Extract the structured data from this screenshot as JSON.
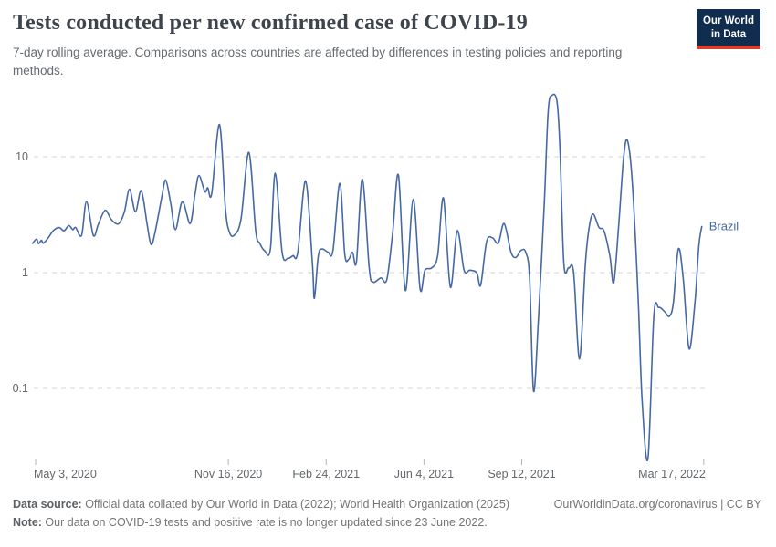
{
  "header": {
    "title": "Tests conducted per new confirmed case of COVID-19",
    "subtitle": "7-day rolling average. Comparisons across countries are affected by differences in testing policies and reporting methods.",
    "logo": {
      "line1": "Our World",
      "line2": "in Data"
    }
  },
  "colors": {
    "line": "#4668a4",
    "logo_navy": "#102d50",
    "logo_red": "#dc3e2e",
    "grid": "#d6d6d6"
  },
  "chart_data": {
    "type": "line",
    "title": "Tests conducted per new confirmed case of COVID-19",
    "xlabel": "",
    "ylabel": "",
    "y_scale": "log",
    "ylim": [
      0.02,
      40
    ],
    "grid": true,
    "legend_position": "end-of-line",
    "y_ticks": [
      {
        "label": "10",
        "value": 10
      },
      {
        "label": "1",
        "value": 1
      },
      {
        "label": "0.1",
        "value": 0.1
      }
    ],
    "x_ticks": [
      {
        "label": "May 3, 2020",
        "date": "2020-05-03",
        "align": "start"
      },
      {
        "label": "Nov 16, 2020",
        "date": "2020-11-16",
        "align": "middle"
      },
      {
        "label": "Feb 24, 2021",
        "date": "2021-02-24",
        "align": "middle"
      },
      {
        "label": "Jun 4, 2021",
        "date": "2021-06-04",
        "align": "middle"
      },
      {
        "label": "Sep 12, 2021",
        "date": "2021-09-12",
        "align": "middle"
      },
      {
        "label": "Mar 17, 2022",
        "date": "2022-03-17",
        "align": "end"
      }
    ],
    "series": [
      {
        "name": "Brazil",
        "color": "#4668a4",
        "points": [
          [
            "2020-04-30",
            1.79
          ],
          [
            "2020-05-04",
            1.95
          ],
          [
            "2020-05-06",
            1.78
          ],
          [
            "2020-05-09",
            1.9
          ],
          [
            "2020-05-11",
            1.8
          ],
          [
            "2020-05-16",
            2.0
          ],
          [
            "2020-05-21",
            2.3
          ],
          [
            "2020-05-27",
            2.45
          ],
          [
            "2020-06-01",
            2.3
          ],
          [
            "2020-06-06",
            2.55
          ],
          [
            "2020-06-10",
            2.35
          ],
          [
            "2020-06-13",
            2.45
          ],
          [
            "2020-06-19",
            2.1
          ],
          [
            "2020-06-24",
            4.1
          ],
          [
            "2020-07-01",
            2.1
          ],
          [
            "2020-07-06",
            2.6
          ],
          [
            "2020-07-13",
            3.45
          ],
          [
            "2020-07-19",
            2.9
          ],
          [
            "2020-07-24",
            2.65
          ],
          [
            "2020-07-28",
            2.7
          ],
          [
            "2020-08-02",
            3.4
          ],
          [
            "2020-08-07",
            5.25
          ],
          [
            "2020-08-13",
            3.35
          ],
          [
            "2020-08-19",
            5.1
          ],
          [
            "2020-08-25",
            2.6
          ],
          [
            "2020-08-29",
            1.75
          ],
          [
            "2020-09-02",
            2.2
          ],
          [
            "2020-09-09",
            4.5
          ],
          [
            "2020-09-13",
            6.3
          ],
          [
            "2020-09-18",
            4.0
          ],
          [
            "2020-09-23",
            2.35
          ],
          [
            "2020-09-30",
            4.1
          ],
          [
            "2020-10-08",
            2.65
          ],
          [
            "2020-10-13",
            4.8
          ],
          [
            "2020-10-17",
            6.9
          ],
          [
            "2020-10-23",
            5.0
          ],
          [
            "2020-10-26",
            5.4
          ],
          [
            "2020-10-30",
            4.8
          ],
          [
            "2020-11-07",
            19.0
          ],
          [
            "2020-11-13",
            3.6
          ],
          [
            "2020-11-17",
            2.25
          ],
          [
            "2020-11-22",
            2.1
          ],
          [
            "2020-11-29",
            2.9
          ],
          [
            "2020-12-07",
            10.9
          ],
          [
            "2020-12-14",
            2.3
          ],
          [
            "2020-12-18",
            1.8
          ],
          [
            "2020-12-23",
            1.55
          ],
          [
            "2020-12-29",
            1.6
          ],
          [
            "2021-01-03",
            7.2
          ],
          [
            "2021-01-10",
            1.5
          ],
          [
            "2021-01-16",
            1.33
          ],
          [
            "2021-01-21",
            1.4
          ],
          [
            "2021-01-26",
            1.5
          ],
          [
            "2021-02-03",
            6.2
          ],
          [
            "2021-02-10",
            1.2
          ],
          [
            "2021-02-12",
            0.6
          ],
          [
            "2021-02-16",
            1.4
          ],
          [
            "2021-02-20",
            1.6
          ],
          [
            "2021-02-26",
            1.5
          ],
          [
            "2021-03-03",
            1.55
          ],
          [
            "2021-03-10",
            5.9
          ],
          [
            "2021-03-15",
            1.45
          ],
          [
            "2021-03-19",
            1.3
          ],
          [
            "2021-03-23",
            1.5
          ],
          [
            "2021-03-27",
            1.25
          ],
          [
            "2021-04-02",
            6.4
          ],
          [
            "2021-04-09",
            1.1
          ],
          [
            "2021-04-13",
            0.83
          ],
          [
            "2021-04-21",
            0.9
          ],
          [
            "2021-04-27",
            0.87
          ],
          [
            "2021-05-03",
            2.2
          ],
          [
            "2021-05-09",
            6.9
          ],
          [
            "2021-05-16",
            0.7
          ],
          [
            "2021-05-24",
            4.3
          ],
          [
            "2021-05-31",
            0.73
          ],
          [
            "2021-06-05",
            1.05
          ],
          [
            "2021-06-12",
            1.1
          ],
          [
            "2021-06-18",
            1.4
          ],
          [
            "2021-06-24",
            4.4
          ],
          [
            "2021-07-01",
            0.75
          ],
          [
            "2021-07-08",
            2.3
          ],
          [
            "2021-07-15",
            1.05
          ],
          [
            "2021-07-21",
            1.05
          ],
          [
            "2021-07-28",
            1.0
          ],
          [
            "2021-08-01",
            0.78
          ],
          [
            "2021-08-07",
            1.85
          ],
          [
            "2021-08-13",
            2.0
          ],
          [
            "2021-08-19",
            1.8
          ],
          [
            "2021-08-25",
            2.65
          ],
          [
            "2021-09-01",
            1.5
          ],
          [
            "2021-09-06",
            1.35
          ],
          [
            "2021-09-11",
            1.55
          ],
          [
            "2021-09-16",
            1.5
          ],
          [
            "2021-09-20",
            0.9
          ],
          [
            "2021-09-24",
            0.095
          ],
          [
            "2021-09-29",
            0.4
          ],
          [
            "2021-10-05",
            4.0
          ],
          [
            "2021-10-09",
            25
          ],
          [
            "2021-10-13",
            34
          ],
          [
            "2021-10-18",
            30
          ],
          [
            "2021-10-21",
            12
          ],
          [
            "2021-10-25",
            1.2
          ],
          [
            "2021-10-30",
            1.1
          ],
          [
            "2021-11-04",
            1.0
          ],
          [
            "2021-11-10",
            0.18
          ],
          [
            "2021-11-16",
            1.2
          ],
          [
            "2021-11-20",
            2.5
          ],
          [
            "2021-11-24",
            3.2
          ],
          [
            "2021-11-30",
            2.45
          ],
          [
            "2021-12-05",
            2.3
          ],
          [
            "2021-12-11",
            1.4
          ],
          [
            "2021-12-15",
            0.82
          ],
          [
            "2021-12-20",
            2.5
          ],
          [
            "2021-12-25",
            9.7
          ],
          [
            "2021-12-29",
            13.8
          ],
          [
            "2022-01-03",
            6.0
          ],
          [
            "2022-01-09",
            0.6
          ],
          [
            "2022-01-13",
            0.08
          ],
          [
            "2022-01-19",
            0.025
          ],
          [
            "2022-01-25",
            0.42
          ],
          [
            "2022-01-30",
            0.5
          ],
          [
            "2022-02-05",
            0.46
          ],
          [
            "2022-02-10",
            0.42
          ],
          [
            "2022-02-14",
            0.55
          ],
          [
            "2022-02-19",
            1.6
          ],
          [
            "2022-02-24",
            0.9
          ],
          [
            "2022-03-02",
            0.22
          ],
          [
            "2022-03-08",
            0.55
          ],
          [
            "2022-03-12",
            1.7
          ],
          [
            "2022-03-15",
            2.5
          ]
        ]
      }
    ]
  },
  "footer": {
    "source_label": "Data source:",
    "source_text": " Official data collated by Our World in Data (2022); World Health Organization (2025)",
    "link_text": "OurWorldinData.org/coronavirus | CC BY",
    "note_label": "Note:",
    "note_text": " Our data on COVID-19 tests and positive rate is no longer updated since 23 June 2022."
  }
}
